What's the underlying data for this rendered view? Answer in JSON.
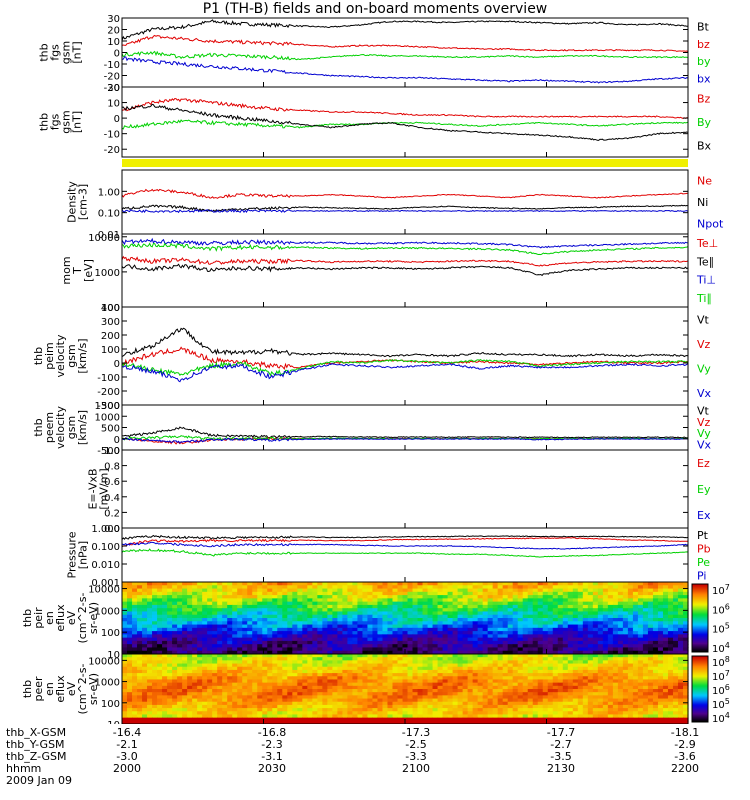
{
  "title": "P1 (TH-B) fields and on-board moments overview",
  "colors": {
    "black": "#000000",
    "red": "#e00000",
    "green": "#00d000",
    "blue": "#0000d0",
    "yellow": "#f0f000"
  },
  "chart_data": [
    {
      "type": "line",
      "ylabel": [
        "thb",
        "fgs",
        "gsm",
        "[nT]"
      ],
      "ylim": [
        -30,
        30
      ],
      "yticks": [
        30,
        20,
        10,
        0,
        -10,
        -20,
        -30
      ],
      "series": [
        {
          "name": "Bt",
          "color": "#000000",
          "values": [
            12,
            20,
            22,
            27,
            25,
            24,
            23,
            22,
            24,
            27,
            27,
            26,
            27,
            27,
            26,
            25,
            26,
            24,
            25,
            23
          ]
        },
        {
          "name": "bz",
          "color": "#e00000",
          "values": [
            5,
            14,
            12,
            10,
            9,
            8,
            7,
            5,
            6,
            6,
            5,
            4,
            3,
            3,
            2,
            2,
            2,
            2,
            2,
            1
          ]
        },
        {
          "name": "by",
          "color": "#00d000",
          "values": [
            -2,
            0,
            -4,
            -2,
            -3,
            -4,
            -6,
            -4,
            -2,
            -3,
            -3,
            -4,
            -4,
            -3,
            -4,
            -3,
            -3,
            -4,
            -4,
            -4
          ]
        },
        {
          "name": "bx",
          "color": "#0000d0",
          "values": [
            -5,
            -8,
            -10,
            -12,
            -14,
            -16,
            -18,
            -20,
            -21,
            -22,
            -22,
            -23,
            -24,
            -25,
            -24,
            -25,
            -26,
            -25,
            -23,
            -22
          ]
        }
      ]
    },
    {
      "type": "line",
      "ylabel": [
        "thb",
        "fgs",
        "gsm",
        "[nT]"
      ],
      "ylim": [
        -25,
        20
      ],
      "yticks": [
        20,
        10,
        0,
        -10,
        -20
      ],
      "series": [
        {
          "name": "Bz",
          "color": "#e00000",
          "values": [
            5,
            10,
            12,
            10,
            8,
            6,
            5,
            4,
            4,
            3,
            2,
            2,
            1,
            1,
            1,
            1,
            1,
            1,
            1,
            0
          ]
        },
        {
          "name": "By",
          "color": "#00d000",
          "values": [
            -6,
            -4,
            -2,
            -3,
            -4,
            -5,
            -6,
            -4,
            -4,
            -3,
            -3,
            -4,
            -5,
            -4,
            -3,
            -4,
            -5,
            -4,
            -3,
            -3
          ]
        },
        {
          "name": "Bx",
          "color": "#000000",
          "values": [
            6,
            8,
            5,
            2,
            0,
            -2,
            -4,
            -6,
            -4,
            -3,
            -6,
            -8,
            -9,
            -10,
            -11,
            -12,
            -14,
            -13,
            -10,
            -9
          ]
        }
      ]
    },
    {
      "type": "line",
      "ylabel": [
        "Density",
        "[cm-3]"
      ],
      "yscale": "log",
      "ylim": [
        0.01,
        10
      ],
      "yticks": [
        "1.00",
        "0.10",
        "0.01"
      ],
      "series": [
        {
          "name": "Ne",
          "color": "#e00000",
          "values": [
            0.6,
            1.2,
            0.9,
            0.5,
            0.7,
            0.6,
            0.6,
            0.7,
            0.6,
            0.5,
            0.6,
            0.7,
            0.6,
            0.5,
            0.7,
            0.6,
            0.5,
            0.6,
            0.7,
            0.8
          ]
        },
        {
          "name": "Ni",
          "color": "#000000",
          "values": [
            0.15,
            0.2,
            0.18,
            0.12,
            0.15,
            0.16,
            0.18,
            0.17,
            0.16,
            0.15,
            0.18,
            0.2,
            0.17,
            0.16,
            0.15,
            0.17,
            0.18,
            0.2,
            0.2,
            0.22
          ]
        },
        {
          "name": "Npot",
          "color": "#0000d0",
          "values": [
            0.12,
            0.12,
            0.12,
            0.12,
            0.12,
            0.12,
            0.12,
            0.12,
            0.12,
            0.12,
            0.12,
            0.12,
            0.12,
            0.12,
            0.12,
            0.12,
            0.12,
            0.12,
            0.12,
            0.12
          ]
        }
      ]
    },
    {
      "type": "line",
      "ylabel": [
        "mom",
        "T",
        "[eV]"
      ],
      "yscale": "log",
      "ylim": [
        100,
        12000
      ],
      "yticks": [
        "10000",
        "1000",
        "100"
      ],
      "series": [
        {
          "name": "Te⊥",
          "color": "#e00000",
          "values": [
            2500,
            2000,
            2200,
            1800,
            2000,
            2000,
            2100,
            1900,
            2000,
            2000,
            1900,
            2000,
            2100,
            2000,
            1500,
            1800,
            1900,
            2000,
            2000,
            2000
          ]
        },
        {
          "name": "Te∥",
          "color": "#000000",
          "values": [
            1500,
            1200,
            1500,
            1100,
            1300,
            1200,
            1300,
            1200,
            1300,
            1300,
            1200,
            1300,
            1400,
            1300,
            800,
            1100,
            1200,
            1300,
            1300,
            1300
          ]
        },
        {
          "name": "Ti⊥",
          "color": "#0000d0",
          "values": [
            7000,
            7500,
            7000,
            6500,
            7000,
            7000,
            6800,
            6800,
            6500,
            6500,
            6800,
            6600,
            6400,
            6000,
            5000,
            5500,
            5800,
            6200,
            6500,
            6800
          ]
        },
        {
          "name": "Ti∥",
          "color": "#00d000",
          "values": [
            5500,
            5800,
            5500,
            4500,
            5000,
            5000,
            5000,
            4800,
            4600,
            4800,
            4800,
            4600,
            4500,
            4200,
            3200,
            3800,
            4200,
            4500,
            4800,
            5000
          ]
        }
      ]
    },
    {
      "type": "line",
      "ylabel": [
        "thb",
        "peim",
        "velocity",
        "gsm",
        "[km/s]"
      ],
      "ylim": [
        -300,
        400
      ],
      "yticks": [
        400,
        300,
        200,
        100,
        0,
        -100,
        -200,
        -300
      ],
      "series": [
        {
          "name": "Vt",
          "color": "#000000",
          "values": [
            60,
            120,
            250,
            80,
            70,
            90,
            60,
            70,
            60,
            50,
            60,
            50,
            70,
            60,
            60,
            50,
            60,
            50,
            60,
            50
          ]
        },
        {
          "name": "Vz",
          "color": "#e00000",
          "values": [
            0,
            60,
            100,
            20,
            10,
            -20,
            -30,
            0,
            10,
            20,
            10,
            0,
            10,
            0,
            -10,
            0,
            10,
            0,
            0,
            10
          ]
        },
        {
          "name": "Vy",
          "color": "#00d000",
          "values": [
            0,
            -50,
            -80,
            -20,
            0,
            -80,
            -40,
            10,
            0,
            20,
            10,
            0,
            20,
            10,
            -20,
            -10,
            0,
            10,
            10,
            10
          ]
        },
        {
          "name": "Vx",
          "color": "#0000d0",
          "values": [
            -20,
            -60,
            -120,
            -30,
            -20,
            -100,
            -50,
            -10,
            -20,
            -30,
            -20,
            -10,
            -40,
            -20,
            -30,
            -30,
            -20,
            -10,
            -20,
            -10
          ]
        }
      ]
    },
    {
      "type": "line",
      "ylabel": [
        "thb",
        "peem",
        "velocity",
        "gsm",
        "[km/s]"
      ],
      "ylim": [
        -500,
        1500
      ],
      "yticks": [
        1500,
        1000,
        500,
        0,
        -500
      ],
      "series": [
        {
          "name": "Vt",
          "color": "#000000",
          "values": [
            100,
            250,
            500,
            150,
            120,
            100,
            90,
            100,
            80,
            70,
            80,
            70,
            80,
            70,
            70,
            60,
            70,
            60,
            70,
            60
          ]
        },
        {
          "name": "Vz",
          "color": "#e00000",
          "values": [
            0,
            -100,
            -200,
            -50,
            -20,
            0,
            10,
            0,
            0,
            10,
            0,
            0,
            10,
            0,
            0,
            0,
            0,
            0,
            0,
            0
          ]
        },
        {
          "name": "Vy",
          "color": "#00d000",
          "values": [
            0,
            50,
            100,
            0,
            20,
            10,
            0,
            20,
            10,
            0,
            10,
            0,
            10,
            0,
            0,
            10,
            0,
            10,
            0,
            10
          ]
        },
        {
          "name": "Vx",
          "color": "#0000d0",
          "values": [
            0,
            -80,
            -150,
            -40,
            -20,
            -60,
            -30,
            -10,
            -10,
            -20,
            -10,
            -10,
            -20,
            -10,
            -40,
            -20,
            -10,
            -10,
            -10,
            -10
          ]
        }
      ]
    },
    {
      "type": "line",
      "ylabel": [
        "E=-VxB",
        "[mV/m]"
      ],
      "ylim": [
        0,
        1.0
      ],
      "yticks": [
        "1.0",
        "0.8",
        "0.6",
        "0.4",
        "0.2",
        "0.0"
      ],
      "series": [
        {
          "name": "Ez",
          "color": "#e00000",
          "values": []
        },
        {
          "name": "Ey",
          "color": "#00d000",
          "values": []
        },
        {
          "name": "Ex",
          "color": "#0000d0",
          "values": []
        }
      ]
    },
    {
      "type": "line",
      "ylabel": [
        "Pressure",
        "[nPa]"
      ],
      "yscale": "log",
      "ylim": [
        0.001,
        1.0
      ],
      "yticks": [
        "1.000",
        "0.100",
        "0.010",
        "0.001"
      ],
      "series": [
        {
          "name": "Pt",
          "color": "#000000",
          "values": [
            0.25,
            0.35,
            0.3,
            0.28,
            0.3,
            0.3,
            0.32,
            0.3,
            0.3,
            0.32,
            0.33,
            0.34,
            0.35,
            0.35,
            0.34,
            0.33,
            0.34,
            0.33,
            0.32,
            0.3
          ]
        },
        {
          "name": "Pb",
          "color": "#e00000",
          "values": [
            0.1,
            0.2,
            0.18,
            0.2,
            0.2,
            0.2,
            0.21,
            0.2,
            0.2,
            0.22,
            0.23,
            0.24,
            0.25,
            0.26,
            0.27,
            0.28,
            0.25,
            0.22,
            0.2,
            0.18
          ]
        },
        {
          "name": "Pe",
          "color": "#00d000",
          "values": [
            0.05,
            0.06,
            0.05,
            0.03,
            0.04,
            0.04,
            0.04,
            0.04,
            0.04,
            0.04,
            0.04,
            0.035,
            0.035,
            0.03,
            0.025,
            0.028,
            0.03,
            0.035,
            0.04,
            0.045
          ]
        },
        {
          "name": "Pi",
          "color": "#0000d0",
          "values": [
            0.12,
            0.15,
            0.12,
            0.1,
            0.12,
            0.12,
            0.12,
            0.12,
            0.11,
            0.1,
            0.1,
            0.1,
            0.09,
            0.08,
            0.07,
            0.07,
            0.08,
            0.09,
            0.1,
            0.12
          ]
        }
      ]
    },
    {
      "type": "heatmap",
      "ylabel": [
        "thb",
        "peir",
        "en",
        "eflux",
        "eV",
        "(cm^2-s-",
        "sr-eV)"
      ],
      "yscale": "log",
      "ylim": [
        10,
        20000
      ],
      "yticks": [
        "10000",
        "1000",
        "100",
        "10"
      ],
      "colorbar": {
        "ticks": [
          "10^7",
          "10^6",
          "10^5",
          "10^4"
        ],
        "range": [
          3.5,
          7.2
        ]
      },
      "band_levels": [
        6.4,
        6.0,
        5.4,
        4.8,
        4.2,
        3.8
      ]
    },
    {
      "type": "heatmap",
      "ylabel": [
        "thb",
        "peer",
        "en",
        "eflux",
        "eV",
        "(cm^2-s-",
        "sr-eV)"
      ],
      "yscale": "log",
      "ylim": [
        10,
        20000
      ],
      "yticks": [
        "10000",
        "1000",
        "100",
        "10"
      ],
      "colorbar": {
        "ticks": [
          "10^8",
          "10^7",
          "10^6",
          "10^5",
          "10^4"
        ],
        "range": [
          3.5,
          8.2
        ]
      },
      "band_levels": [
        6.6,
        7.0,
        7.5,
        7.5,
        7.1,
        6.8
      ]
    }
  ],
  "footer": {
    "rows": [
      {
        "label": "thb_X-GSM",
        "values": [
          "-16.4",
          "-16.8",
          "-17.3",
          "-17.7",
          "-18.1"
        ]
      },
      {
        "label": "thb_Y-GSM",
        "values": [
          "-2.1",
          "-2.3",
          "-2.5",
          "-2.7",
          "-2.9"
        ]
      },
      {
        "label": "thb_Z-GSM",
        "values": [
          "-3.0",
          "-3.1",
          "-3.3",
          "-3.5",
          "-3.6"
        ]
      },
      {
        "label": "hhmm",
        "values": [
          "2000",
          "2030",
          "2100",
          "2130",
          "2200"
        ]
      }
    ],
    "date": "2009 Jan 09"
  }
}
